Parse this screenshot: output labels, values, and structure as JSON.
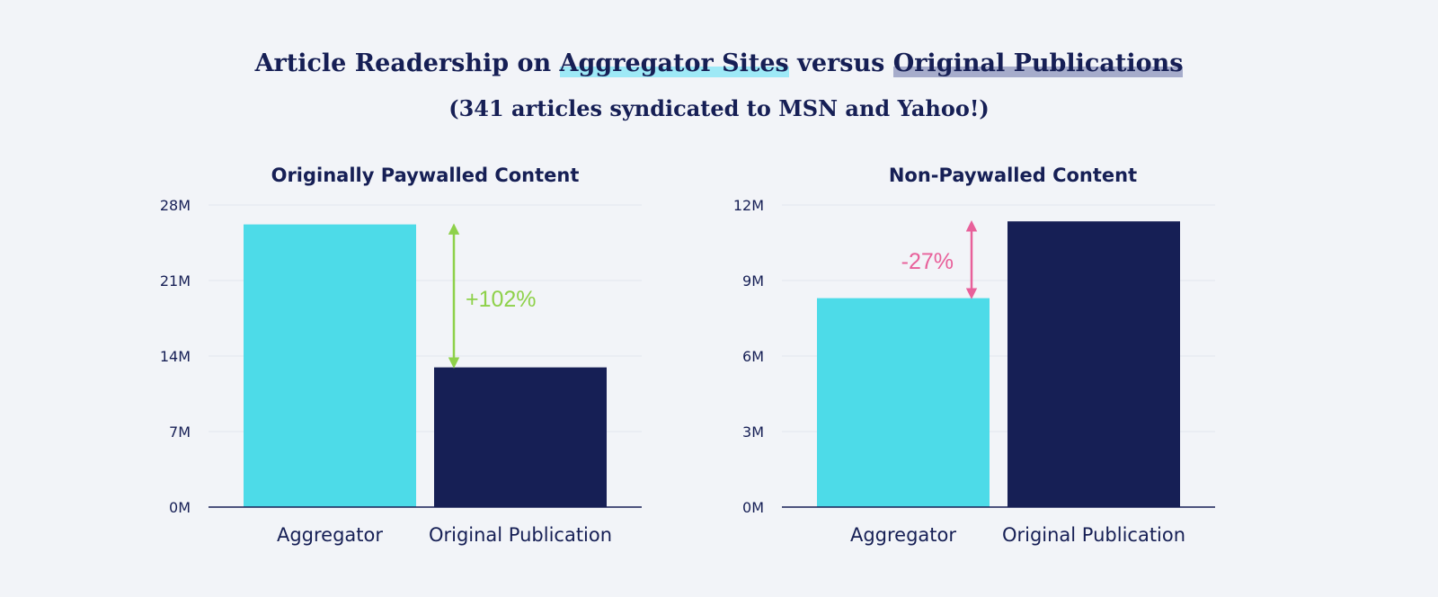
{
  "header": {
    "title_a": "Article Readership on ",
    "title_b": "Aggregator Sites",
    "title_c": " versus ",
    "title_d": "Original Publications",
    "subtitle": "(341 articles syndicated to MSN and Yahoo!)"
  },
  "colors": {
    "aggregator": "#4ddbe8",
    "original": "#161f55",
    "increase": "#8ed14a",
    "decrease": "#e8609a",
    "grid": "#e3e6ee",
    "axis": "#161f55"
  },
  "chart_data": [
    {
      "type": "bar",
      "title": "Originally Paywalled Content",
      "categories": [
        "Aggregator",
        "Original Publication"
      ],
      "values": [
        26.2,
        12.95
      ],
      "ylim": [
        0,
        28
      ],
      "yticks": [
        0,
        7,
        14,
        21,
        28
      ],
      "ytick_labels": [
        "0M",
        "7M",
        "14M",
        "21M",
        "28M"
      ],
      "grid": true,
      "annotation": {
        "text": "+102%",
        "color": "increase",
        "from": 26.2,
        "to": 12.95
      }
    },
    {
      "type": "bar",
      "title": "Non-Paywalled Content",
      "categories": [
        "Aggregator",
        "Original Publication"
      ],
      "values": [
        8.3,
        11.35
      ],
      "ylim": [
        0,
        12
      ],
      "yticks": [
        0,
        3,
        6,
        9,
        12
      ],
      "ytick_labels": [
        "0M",
        "3M",
        "6M",
        "9M",
        "12M"
      ],
      "grid": true,
      "annotation": {
        "text": "-27%",
        "color": "decrease",
        "from": 8.3,
        "to": 11.35
      }
    }
  ]
}
